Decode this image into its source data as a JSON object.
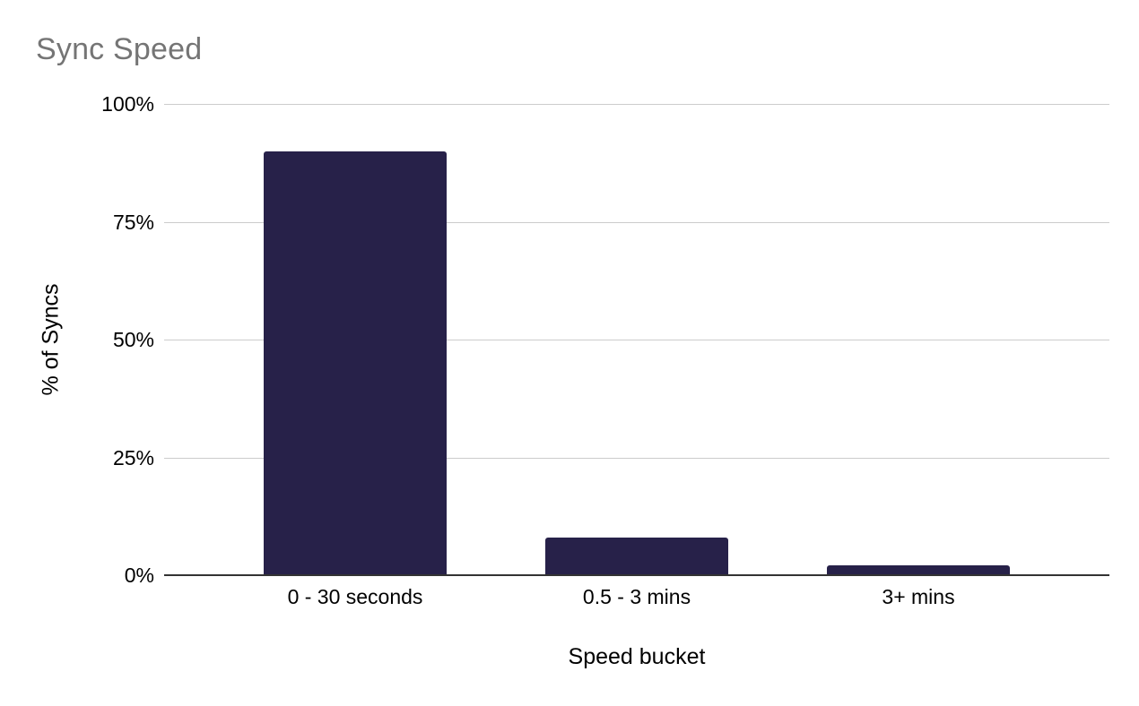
{
  "chart_data": {
    "type": "bar",
    "title": "Sync Speed",
    "categories": [
      "0 - 30 seconds",
      "0.5 - 3 mins",
      "3+ mins"
    ],
    "values": [
      90,
      8,
      2
    ],
    "value_unit": "%",
    "xlabel": "Speed bucket",
    "ylabel": "% of Syncs",
    "ylim": [
      0,
      100
    ],
    "yticks": [
      {
        "value": 0,
        "label": "0%"
      },
      {
        "value": 25,
        "label": "25%"
      },
      {
        "value": 50,
        "label": "50%"
      },
      {
        "value": 75,
        "label": "75%"
      },
      {
        "value": 100,
        "label": "100%"
      }
    ],
    "grid": true,
    "legend": "none",
    "colors": {
      "bar": "#272149",
      "title": "#757575",
      "axis_text": "#000000",
      "gridline": "#cccccc",
      "baseline": "#333333",
      "background": "#ffffff"
    }
  }
}
